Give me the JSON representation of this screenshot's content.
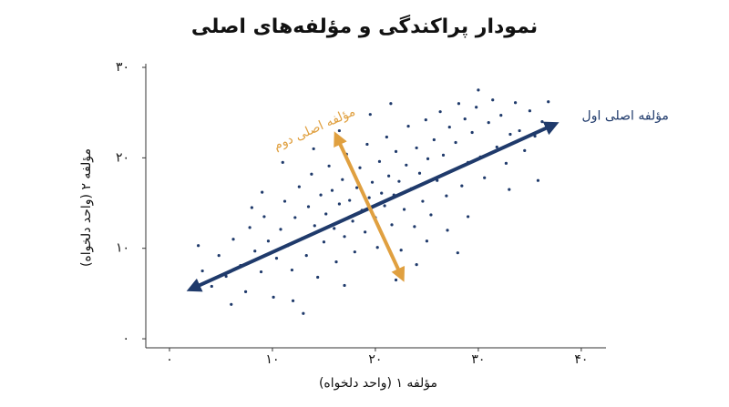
{
  "chart_data": {
    "type": "scatter",
    "title": "نمودار پراکندگی و مؤلفه‌های اصلی",
    "xlabel": "مؤلفه ۱ (واحد دلخواه)",
    "ylabel": "مؤلفه ۲ (واحد دلخواه)",
    "color": "#1f3a6b",
    "x": [
      3.2,
      4.1,
      4.8,
      5.5,
      6.2,
      6.9,
      7.4,
      7.8,
      8.3,
      8.9,
      9.2,
      9.6,
      10.1,
      10.4,
      10.8,
      11.2,
      11.5,
      11.9,
      12.2,
      12.6,
      12.9,
      13.3,
      13.5,
      13.8,
      14.1,
      14.4,
      14.7,
      15.0,
      15.2,
      15.5,
      15.8,
      16.0,
      16.2,
      16.5,
      16.8,
      17.0,
      17.2,
      17.5,
      17.8,
      18.0,
      18.2,
      18.5,
      18.7,
      19.0,
      19.2,
      19.4,
      19.7,
      20.0,
      20.2,
      20.4,
      20.6,
      20.9,
      21.1,
      21.3,
      21.6,
      21.8,
      22.0,
      22.3,
      22.5,
      22.8,
      23.0,
      23.2,
      23.5,
      23.8,
      24.0,
      24.3,
      24.6,
      24.9,
      25.1,
      25.4,
      25.7,
      26.0,
      26.3,
      26.6,
      26.9,
      27.2,
      27.5,
      27.8,
      28.1,
      28.4,
      28.7,
      29.0,
      29.4,
      29.8,
      30.2,
      30.6,
      31.0,
      31.4,
      31.8,
      32.2,
      32.7,
      33.1,
      33.6,
      34.0,
      34.5,
      35.0,
      35.5,
      36.2,
      36.8,
      2.8,
      6.0,
      9.0,
      12.0,
      14.0,
      17.0,
      19.5,
      22.0,
      25.0,
      27.0,
      29.0,
      30.0,
      33.0,
      11.0,
      8.0,
      16.5,
      21.5,
      24.0,
      13.0,
      28.0,
      35.8
    ],
    "values": [
      7.5,
      5.8,
      9.2,
      6.9,
      11.0,
      8.1,
      5.2,
      12.3,
      9.7,
      7.4,
      13.5,
      10.8,
      4.6,
      8.9,
      12.1,
      15.2,
      10.3,
      7.6,
      13.4,
      16.8,
      11.1,
      9.2,
      14.6,
      18.2,
      12.5,
      6.8,
      15.9,
      10.7,
      13.8,
      19.1,
      16.4,
      12.2,
      8.5,
      14.9,
      17.6,
      11.3,
      20.4,
      15.3,
      13.0,
      9.6,
      16.7,
      18.9,
      14.2,
      11.8,
      21.5,
      15.6,
      17.3,
      13.4,
      10.1,
      19.6,
      16.1,
      14.7,
      22.3,
      18.0,
      12.6,
      15.9,
      20.7,
      17.4,
      9.8,
      14.3,
      19.2,
      23.5,
      16.6,
      12.4,
      21.1,
      18.3,
      15.2,
      24.2,
      19.9,
      13.7,
      22.0,
      17.5,
      25.1,
      20.3,
      15.8,
      23.4,
      18.6,
      21.7,
      26.0,
      16.9,
      24.3,
      19.5,
      22.8,
      25.6,
      20.1,
      17.8,
      23.9,
      26.4,
      21.2,
      24.7,
      19.4,
      22.6,
      26.1,
      23.0,
      20.8,
      25.2,
      22.4,
      24.0,
      26.2,
      10.3,
      3.8,
      16.2,
      4.2,
      21.0,
      5.9,
      24.8,
      6.5,
      10.8,
      12.0,
      13.5,
      27.5,
      16.5,
      19.5,
      14.5,
      23.0,
      26.0,
      8.2,
      2.8,
      9.5,
      17.5
    ],
    "xlim": [
      -2.3,
      42.4
    ],
    "ylim": [
      -1,
      30
    ],
    "xticks": [
      {
        "value": 0,
        "label": "۰"
      },
      {
        "value": 10,
        "label": "۱۰"
      },
      {
        "value": 20,
        "label": "۲۰"
      },
      {
        "value": 30,
        "label": "۳۰"
      },
      {
        "value": 40,
        "label": "۴۰"
      }
    ],
    "yticks": [
      {
        "value": 0,
        "label": "۰"
      },
      {
        "value": 10,
        "label": "۱۰"
      },
      {
        "value": 20,
        "label": "۲۰"
      },
      {
        "value": 30,
        "label": "۳۰"
      }
    ],
    "annotations": [
      {
        "label": "مؤلفه اصلی اول",
        "color": "#1f3a6b",
        "x": [
          2.3,
          37.2
        ],
        "y": [
          5.6,
          23.6
        ]
      },
      {
        "label": "مؤلفه اصلی دوم",
        "color": "#e0a040",
        "x": [
          16.3,
          22.5
        ],
        "y": [
          22.2,
          7.0
        ]
      }
    ]
  }
}
